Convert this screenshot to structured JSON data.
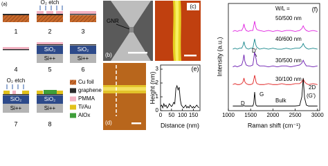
{
  "panel_a": {
    "label": "(a)",
    "steps": [
      {
        "label": "1"
      },
      {
        "label": "2",
        "etch": "O₂ etch"
      },
      {
        "label": "3"
      },
      {
        "label": "4"
      },
      {
        "label": "5",
        "layers": [
          "SiO₂",
          "Si++"
        ]
      },
      {
        "label": "6",
        "layers": [
          "SiO₂",
          "Si++"
        ]
      },
      {
        "label": "7",
        "etch": "O₂ etch",
        "layers": [
          "SiO₂",
          "Si++"
        ]
      },
      {
        "label": "8",
        "layers": [
          "SiO₂",
          "Si++"
        ]
      }
    ],
    "legend": [
      {
        "name": "Cu foil",
        "color": "#c8692c"
      },
      {
        "name": "graphene",
        "color": "#2a2a2a"
      },
      {
        "name": "PMMA",
        "color": "#f3b3c3"
      },
      {
        "name": "Ti/Au",
        "color": "#e2c21c"
      },
      {
        "name": "AlOx",
        "color": "#3f9e3a"
      }
    ]
  },
  "panel_b": {
    "label": "(b)",
    "annotation": "GNR"
  },
  "panel_c": {
    "label": "(c)"
  },
  "panel_d": {
    "label": "(d)"
  },
  "chart_data": [
    {
      "type": "line",
      "label": "(e)",
      "xlabel": "Distance (nm)",
      "ylabel": "Height (nm)",
      "x": [
        0,
        5,
        10,
        15,
        20,
        25,
        30,
        35,
        40,
        45,
        50,
        55,
        60,
        65,
        70,
        75,
        80,
        85,
        90,
        95,
        100,
        105,
        110,
        115,
        120,
        125,
        130,
        135,
        140,
        145,
        150,
        155,
        160,
        165,
        170,
        175
      ],
      "series": [
        {
          "color": "#000000",
          "values": [
            0.3,
            0.4,
            0.2,
            0.5,
            0.3,
            0.4,
            0.2,
            0.3,
            0.5,
            0.4,
            0.3,
            0.4,
            0.6,
            0.5,
            1.6,
            1.8,
            1.5,
            1.7,
            0.8,
            0.4,
            0.3,
            0.2,
            0.3,
            0.4,
            0.2,
            0.3,
            0.2,
            0.4,
            0.3,
            0.2,
            0.3,
            0.2,
            0.3,
            0.4,
            0.3,
            0.2
          ]
        }
      ],
      "xlim": [
        0,
        180
      ],
      "ylim": [
        0,
        3.3
      ],
      "xticks": [
        0,
        50,
        100,
        150
      ],
      "yticks": [
        0,
        1,
        2,
        3
      ]
    },
    {
      "type": "line",
      "label": "(f)",
      "xlabel": "Raman shift (cm⁻¹)",
      "ylabel": "Intensity (a.u.)",
      "x": [
        1100,
        1150,
        1200,
        1250,
        1300,
        1330,
        1350,
        1370,
        1400,
        1450,
        1500,
        1550,
        1570,
        1590,
        1610,
        1620,
        1640,
        1700,
        1800,
        1900,
        2000,
        2100,
        2200,
        2300,
        2400,
        2500,
        2600,
        2650,
        2680,
        2710,
        2750,
        2800,
        2900,
        3000
      ],
      "series": [
        {
          "name": "50/500 nm",
          "color": "#e01ee0",
          "values": [
            85,
            86,
            85,
            86,
            86,
            89,
            93,
            89,
            86,
            85,
            86,
            86,
            91,
            96,
            91,
            89,
            87,
            86,
            85,
            86,
            85,
            86,
            85,
            86,
            86,
            85,
            86,
            88,
            91,
            88,
            86,
            85,
            86,
            85
          ]
        },
        {
          "name": "40/600 nm",
          "color": "#15868a",
          "values": [
            66,
            67,
            66,
            67,
            67,
            70,
            74,
            70,
            67,
            66,
            67,
            67,
            72,
            77,
            72,
            70,
            68,
            66,
            67,
            66,
            67,
            66,
            66,
            67,
            66,
            67,
            67,
            69,
            72,
            69,
            67,
            66,
            67,
            66
          ]
        },
        {
          "name": "30/500 nm",
          "color": "#6a1ab0",
          "values": [
            47,
            48,
            47,
            48,
            49,
            54,
            60,
            53,
            49,
            48,
            48,
            49,
            56,
            63,
            58,
            56,
            50,
            48,
            48,
            47,
            48,
            47,
            48,
            48,
            47,
            48,
            49,
            51,
            54,
            51,
            48,
            48,
            47,
            48
          ]
        },
        {
          "name": "30/100 nm",
          "color": "#e02020",
          "values": [
            28,
            29,
            28,
            28,
            29,
            31,
            35,
            31,
            29,
            28,
            28,
            29,
            33,
            38,
            34,
            31,
            29,
            28,
            28,
            29,
            28,
            28,
            29,
            28,
            28,
            29,
            29,
            31,
            34,
            31,
            29,
            28,
            29,
            28
          ]
        },
        {
          "name": "Bulk",
          "color": "#000000",
          "values": [
            5,
            5,
            5,
            5,
            5,
            5,
            5.5,
            5,
            5,
            5,
            5,
            5,
            8,
            20,
            9,
            6,
            5,
            5,
            5,
            5,
            5,
            5,
            5,
            5,
            5,
            5,
            5.5,
            15,
            35,
            14,
            6,
            5,
            5,
            5
          ]
        }
      ],
      "annotations": [
        "W/L =",
        "D'",
        "D",
        "G",
        "2D",
        "(G')"
      ],
      "xlim": [
        1000,
        3050
      ],
      "ylim": [
        0,
        115
      ],
      "xticks": [
        1000,
        1500,
        2000,
        2500,
        3000
      ]
    }
  ]
}
